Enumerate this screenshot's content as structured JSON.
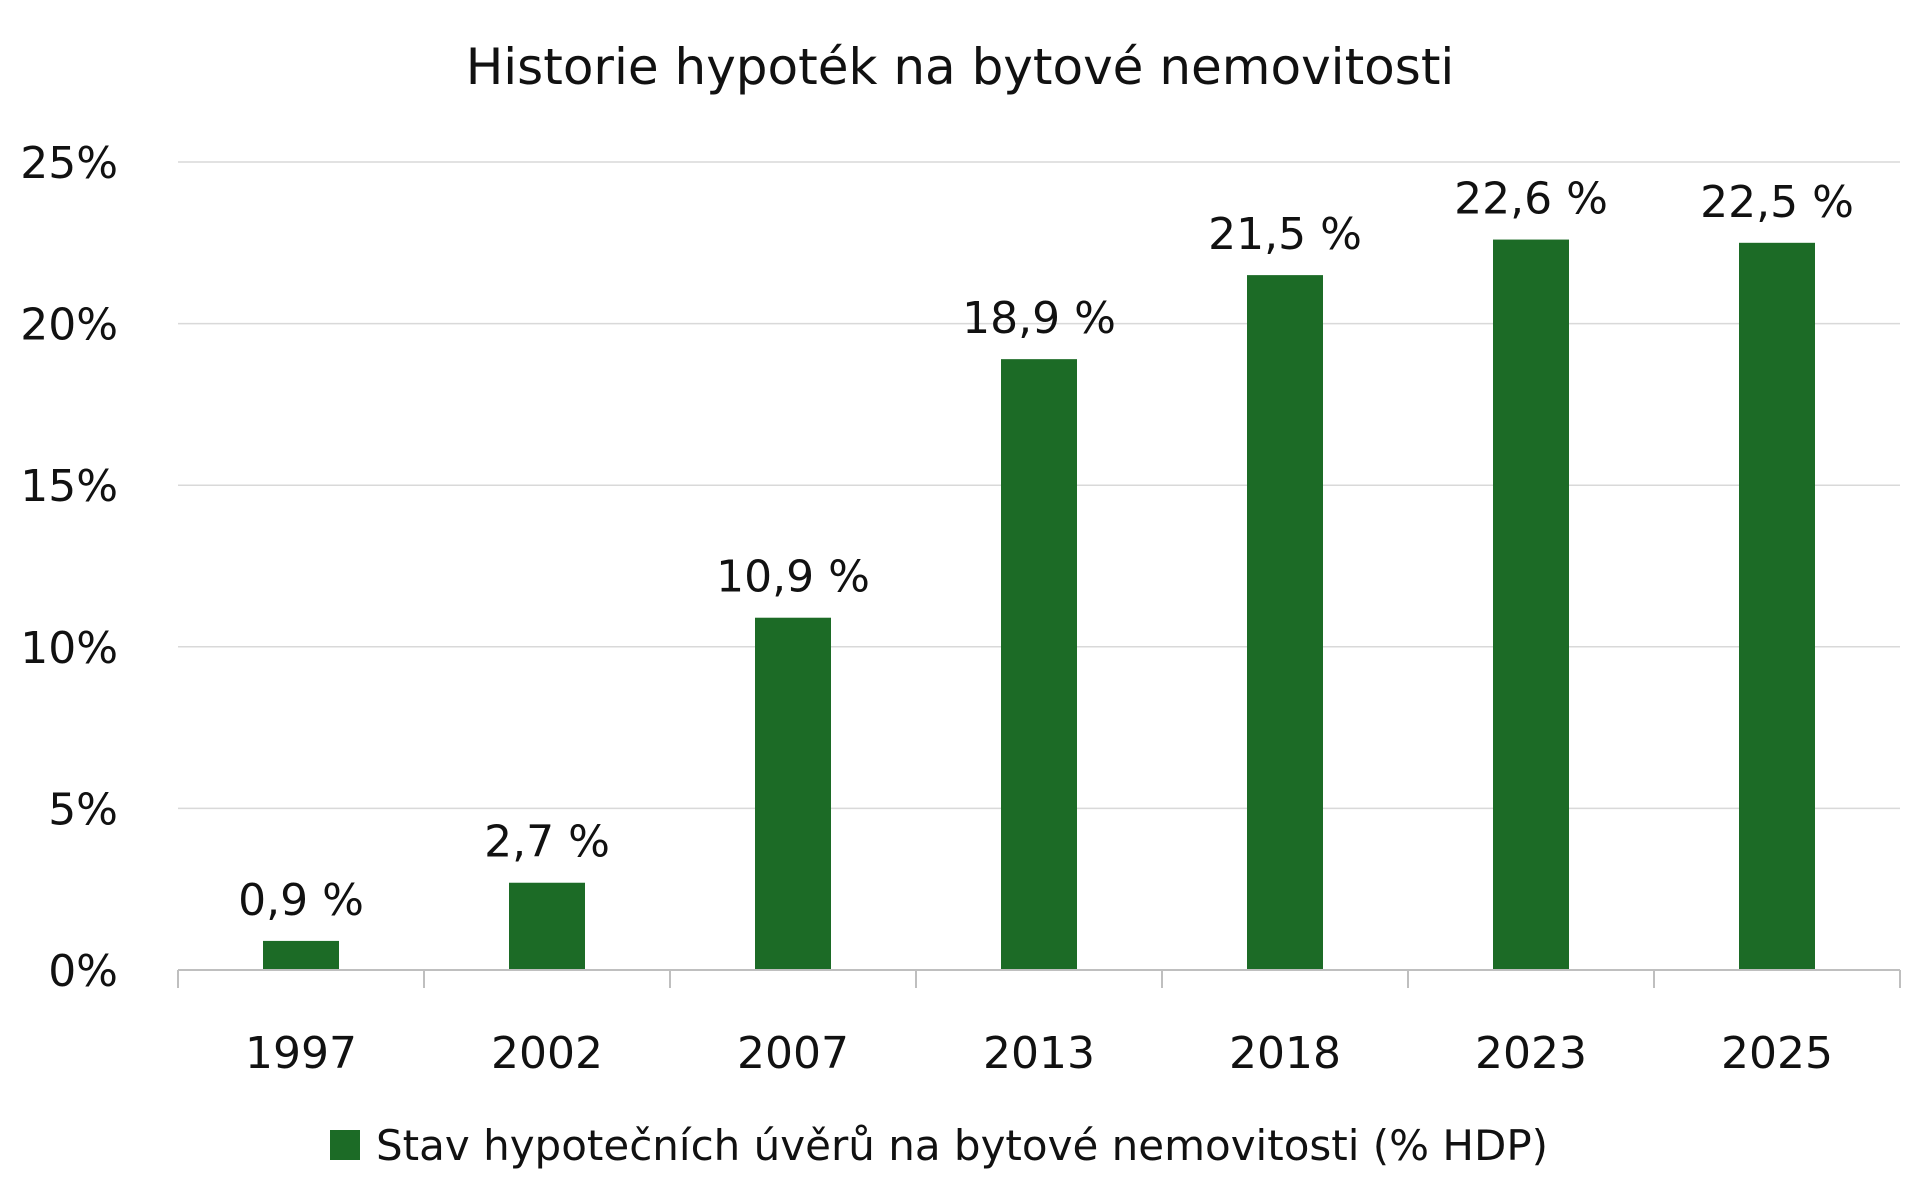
{
  "chart_data": {
    "type": "bar",
    "title": "Historie hypoték na bytové nemovitosti",
    "xlabel": "",
    "ylabel": "",
    "categories": [
      "1997",
      "2002",
      "2007",
      "2013",
      "2018",
      "2023",
      "2025"
    ],
    "series": [
      {
        "name": "Stav hypotečních úvěrů na bytové nemovitosti (% HDP)",
        "values": [
          0.9,
          2.7,
          10.9,
          18.9,
          21.5,
          22.6,
          22.5
        ],
        "data_labels": [
          "0,9 %",
          "2,7 %",
          "10,9 %",
          "18,9 %",
          "21,5 %",
          "22,6 %",
          "22,5 %"
        ],
        "color": "#1c6b26"
      }
    ],
    "ylim": [
      0,
      25
    ],
    "yticks": [
      0,
      5,
      10,
      15,
      20,
      25
    ],
    "ytick_labels": [
      "0%",
      "5%",
      "10%",
      "15%",
      "20%",
      "25%"
    ],
    "grid": true,
    "legend_position": "bottom",
    "colors": {
      "grid": "#d9d9d9",
      "axis": "#bfbfbf",
      "text": "#111111"
    }
  }
}
